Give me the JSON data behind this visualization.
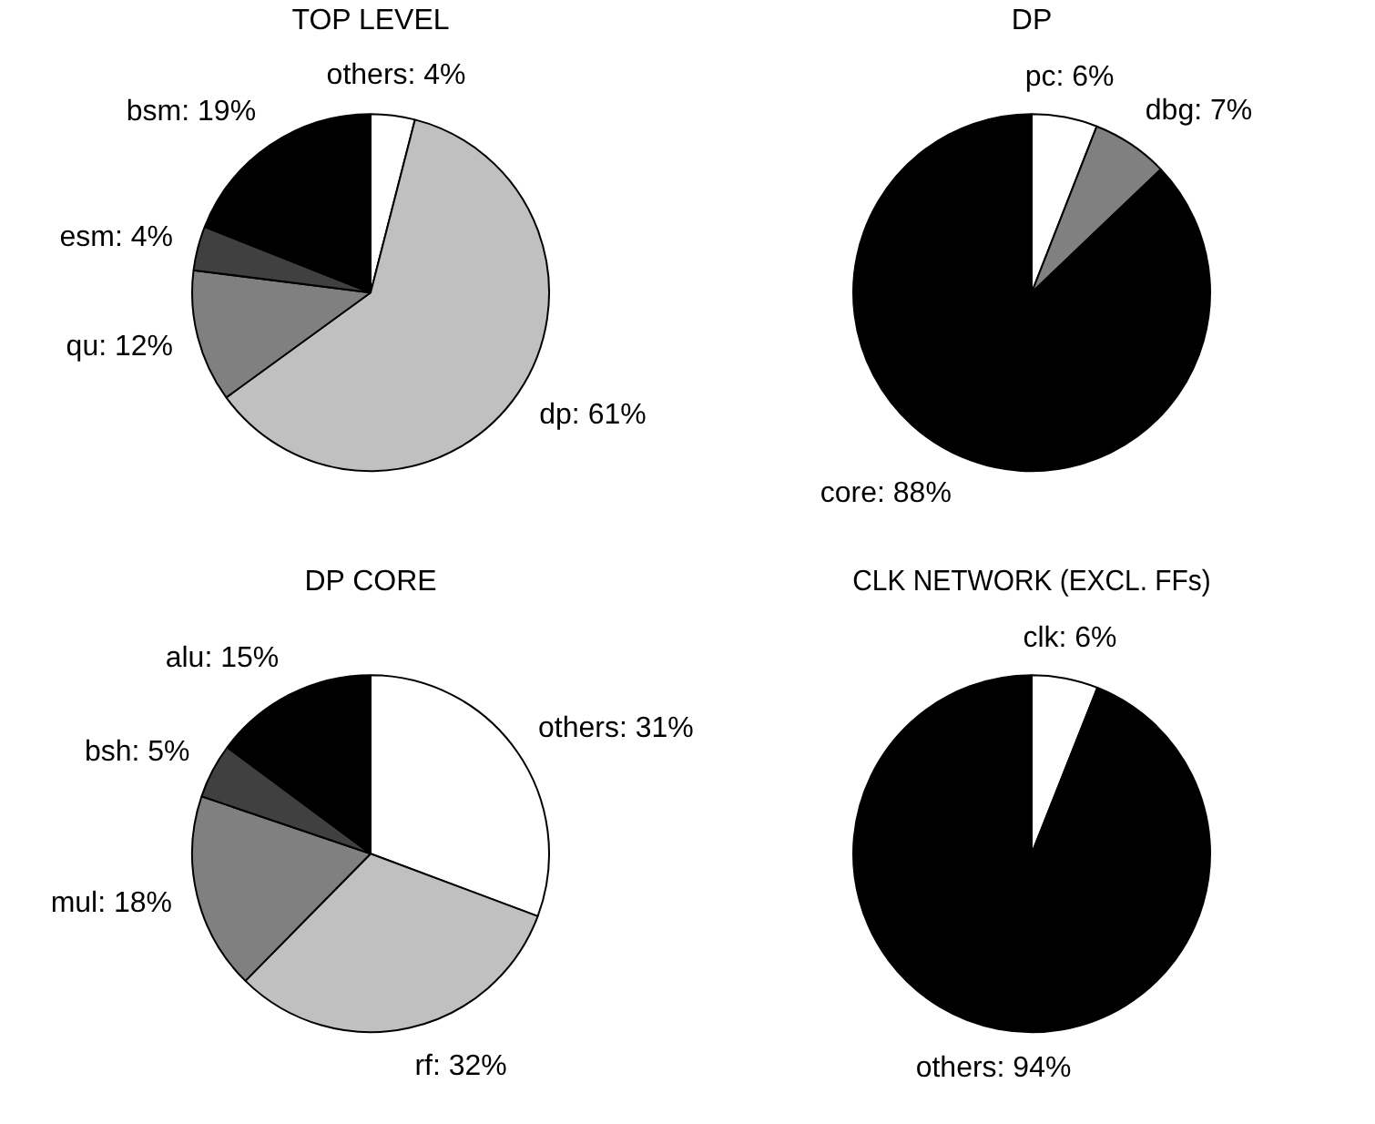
{
  "chart_data": [
    {
      "type": "pie",
      "title": "TOP LEVEL",
      "categories": [
        "others",
        "dp",
        "qu",
        "esm",
        "bsm"
      ],
      "values": [
        4,
        61,
        12,
        4,
        19
      ],
      "value_labels": [
        "4%",
        "61%",
        "12%",
        "4%",
        "19%"
      ],
      "colors": [
        "#ffffff",
        "#c0c0c0",
        "#808080",
        "#404040",
        "#000000"
      ]
    },
    {
      "type": "pie",
      "title": "DP",
      "categories": [
        "pc",
        "dbg",
        "core"
      ],
      "values": [
        6,
        7,
        88
      ],
      "value_labels": [
        "6%",
        "7%",
        "88%"
      ],
      "colors": [
        "#ffffff",
        "#808080",
        "#000000"
      ]
    },
    {
      "type": "pie",
      "title": "DP CORE",
      "categories": [
        "others",
        "rf",
        "mul",
        "bsh",
        "alu"
      ],
      "values": [
        31,
        32,
        18,
        5,
        15
      ],
      "value_labels": [
        "31%",
        "32%",
        "18%",
        "5%",
        "15%"
      ],
      "colors": [
        "#ffffff",
        "#c0c0c0",
        "#808080",
        "#404040",
        "#000000"
      ]
    },
    {
      "type": "pie",
      "title": "CLK NETWORK (EXCL. FFs)",
      "categories": [
        "clk",
        "others"
      ],
      "values": [
        6,
        94
      ],
      "value_labels": [
        "6%",
        "94%"
      ],
      "colors": [
        "#ffffff",
        "#000000"
      ]
    }
  ]
}
